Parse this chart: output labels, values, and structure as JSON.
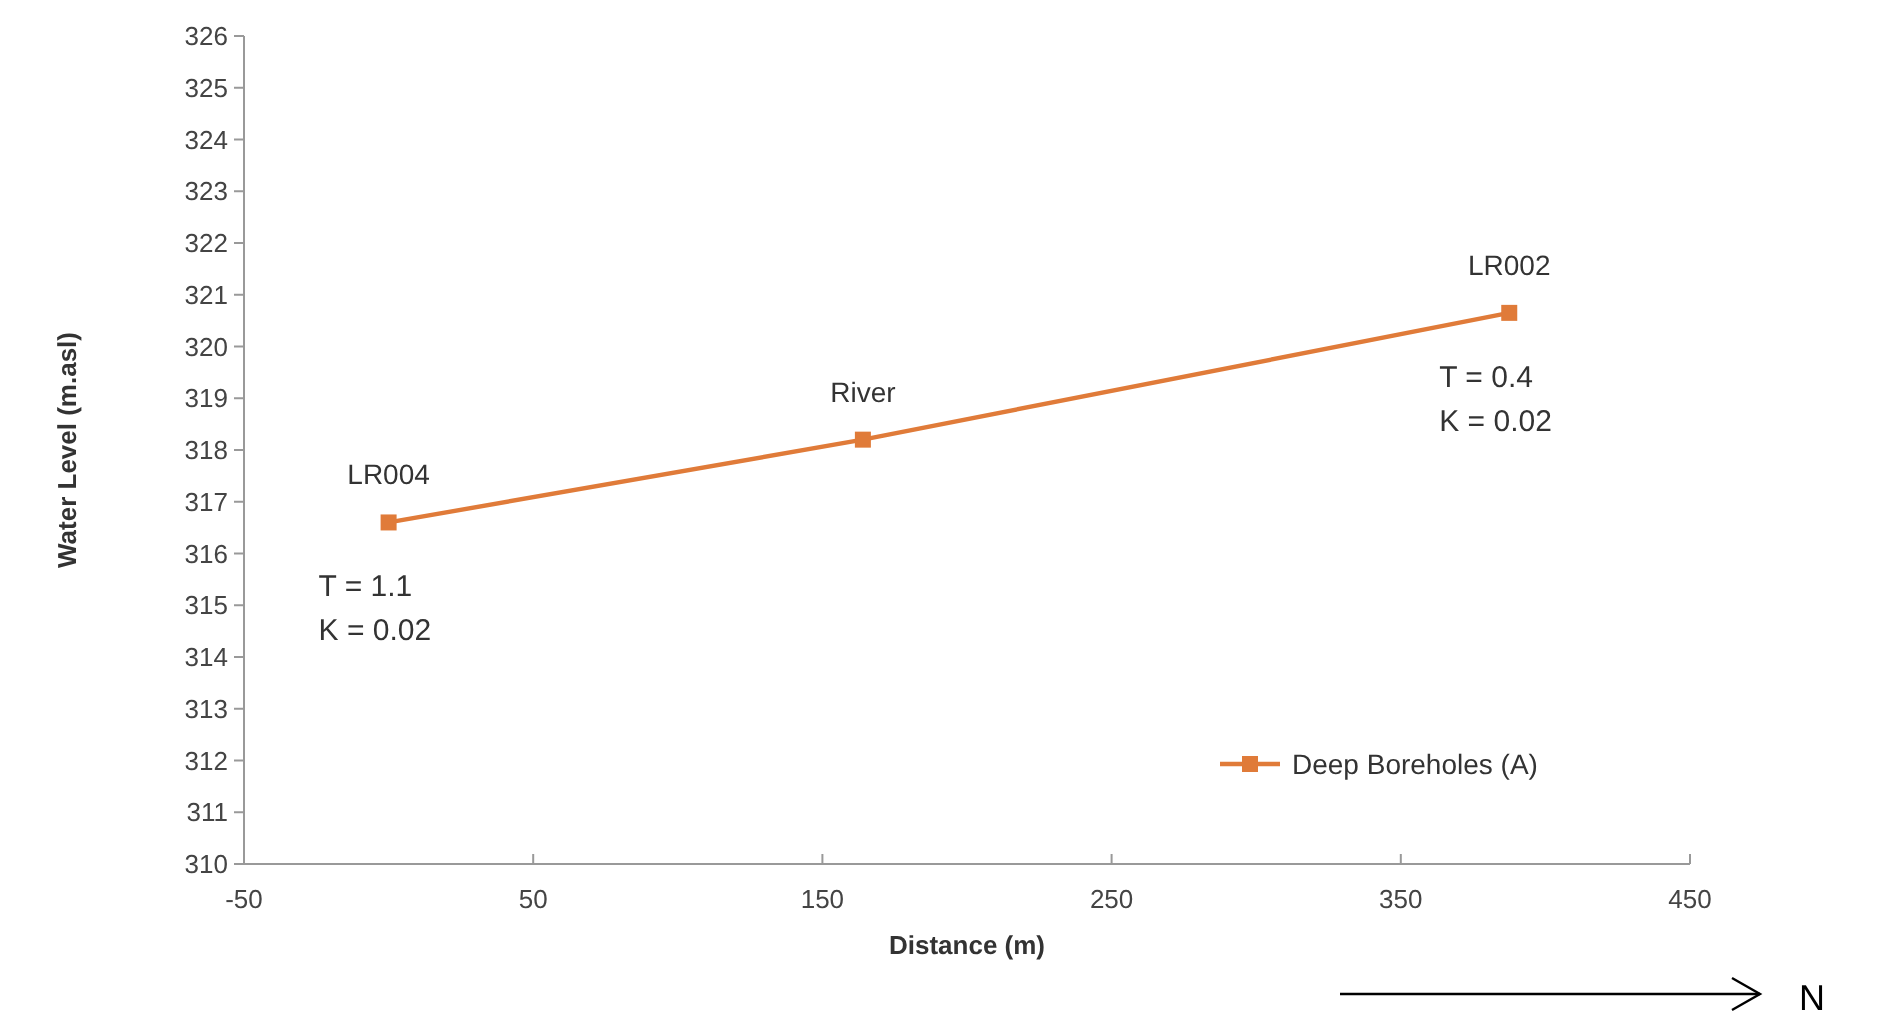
{
  "chart_data": {
    "type": "line",
    "xlabel": "Distance (m)",
    "ylabel": "Water Level (m.asl)",
    "x": [
      0,
      164,
      387.5
    ],
    "series": [
      {
        "name": "Deep Boreholes (A)",
        "color": "#e07b39",
        "values": [
          316.6,
          318.2,
          320.65
        ]
      }
    ],
    "xlim": [
      -50,
      450
    ],
    "xticks": [
      -50,
      50,
      150,
      250,
      350,
      450
    ],
    "ylim": [
      310,
      326
    ],
    "yticks": [
      310,
      311,
      312,
      313,
      314,
      315,
      316,
      317,
      318,
      319,
      320,
      321,
      322,
      323,
      324,
      325,
      326
    ],
    "grid": false,
    "legend": "bottom right",
    "marker": "square",
    "line_style": "solid",
    "annotations": [
      "N",
      {
        "text": "LR004",
        "x": 0,
        "y": 316.6
      },
      {
        "text": "T = 1.1",
        "x": 0,
        "y": 316.6
      },
      "K = 0.02",
      {
        "text": "River",
        "x": 164,
        "y": 318.2
      },
      {
        "text": "LR002",
        "x": 387.5,
        "y": 320.65
      },
      {
        "text": "T = 0.4",
        "x": 387.5,
        "y": 320.65
      },
      "K = 0.02"
    ]
  }
}
